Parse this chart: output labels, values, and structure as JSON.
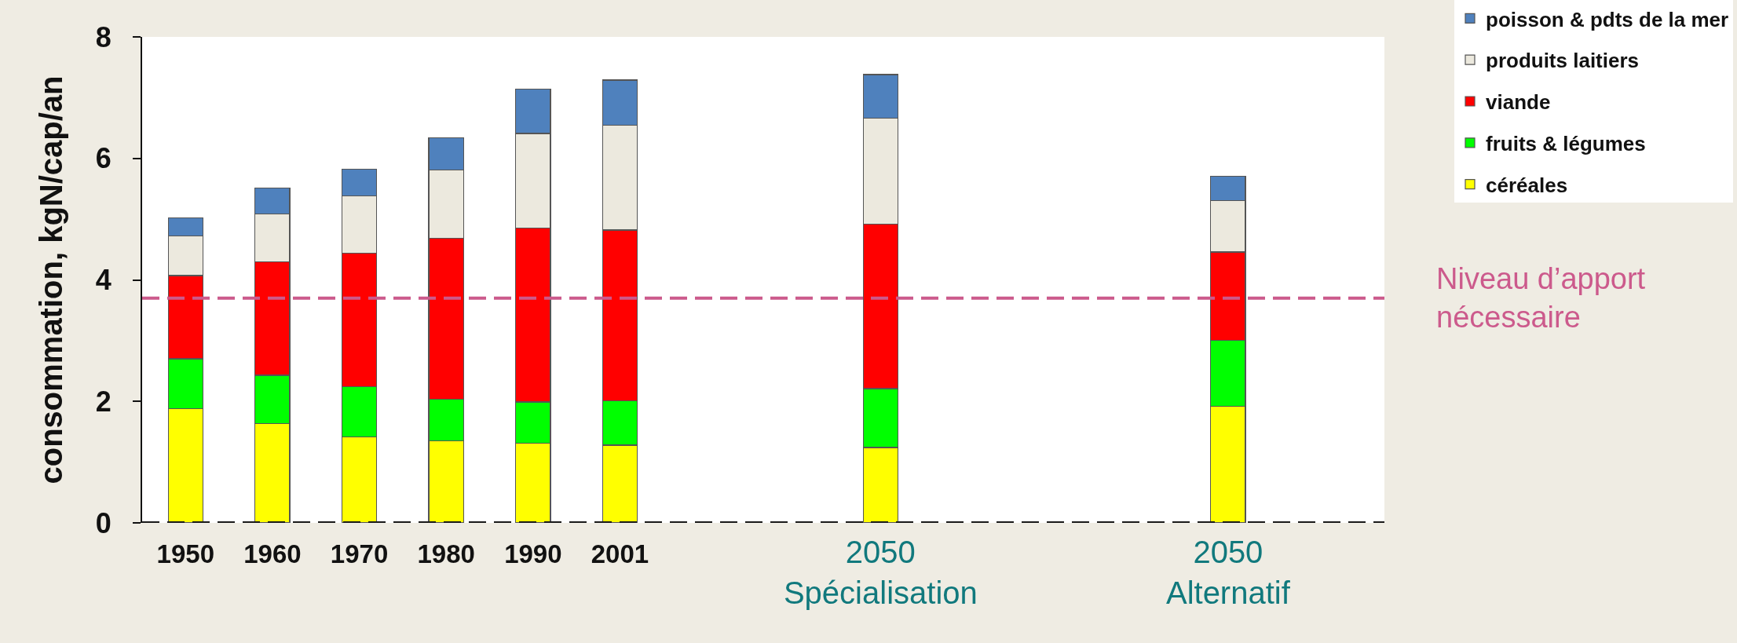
{
  "chart_data": {
    "type": "bar",
    "stacked": true,
    "ylabel": "consommation, kgN/cap/an",
    "categories": [
      "1950",
      "1960",
      "1970",
      "1980",
      "1990",
      "2001",
      null,
      null,
      "2050\nSpécialisation",
      null,
      null,
      null,
      "2050\nAlternatif"
    ],
    "series": [
      {
        "name": "céréales",
        "color": "#ffff00",
        "values": [
          1.88,
          1.63,
          1.42,
          1.35,
          1.31,
          1.28,
          null,
          null,
          1.24,
          null,
          null,
          null,
          1.92
        ]
      },
      {
        "name": "fruits & légumes",
        "color": "#00ff00",
        "values": [
          0.82,
          0.8,
          0.82,
          0.69,
          0.68,
          0.73,
          null,
          null,
          0.97,
          null,
          null,
          null,
          1.09
        ]
      },
      {
        "name": "viande",
        "color": "#ff0000",
        "values": [
          1.37,
          1.87,
          2.2,
          2.65,
          2.86,
          2.81,
          null,
          null,
          2.71,
          null,
          null,
          null,
          1.45
        ]
      },
      {
        "name": "produits laitiers",
        "color": "#ece9de",
        "values": [
          0.65,
          0.79,
          0.94,
          1.12,
          1.56,
          1.73,
          null,
          null,
          1.74,
          null,
          null,
          null,
          0.85
        ]
      },
      {
        "name": "poisson & pdts de la mer",
        "color": "#4f81bd",
        "values": [
          0.3,
          0.42,
          0.44,
          0.53,
          0.73,
          0.74,
          null,
          null,
          0.72,
          null,
          null,
          null,
          0.4
        ]
      }
    ],
    "ylim": [
      0,
      8
    ],
    "yticks": [
      0,
      2,
      4,
      6,
      8
    ],
    "grid": false,
    "legend": "top right",
    "ref_lines": [
      {
        "axis": "y",
        "value": 3.7,
        "label": "Niveau d’apport\nnécessaire",
        "color": "#cc5a8c",
        "line_style": "dashed"
      },
      {
        "axis": "y",
        "value": 0,
        "color": "#1a1a1a",
        "line_style": "dashed"
      }
    ]
  }
}
